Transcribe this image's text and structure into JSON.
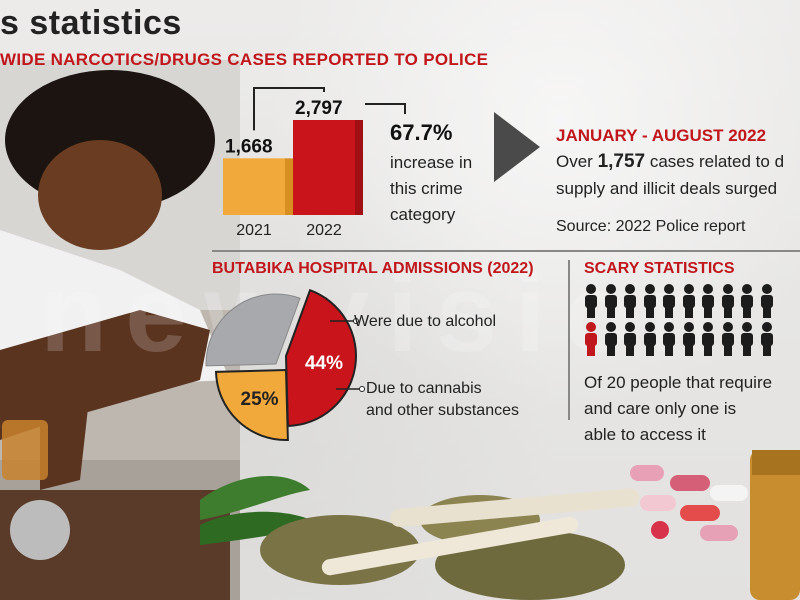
{
  "header": {
    "title": "s statistics",
    "subtitle": "WIDE NARCOTICS/DRUGS CASES REPORTED TO POLICE"
  },
  "colors": {
    "accent_red": "#c0171c",
    "bar_2021": "#f2a93b",
    "bar_2022": "#c8141a",
    "pie_grey": "#a7a9ac"
  },
  "increase": {
    "percent": "67.7%",
    "description": "increase in this crime category"
  },
  "period": {
    "heading": "JANUARY - AUGUST 2022",
    "line1_prefix": "Over ",
    "line1_number": "1,757",
    "line1_suffix": " cases related to d",
    "line2": "supply and illicit deals surged",
    "source": "Source: 2022 Police report"
  },
  "butabika": {
    "heading": "BUTABIKA HOSPITAL ADMISSIONS (2022)",
    "alcohol_label": "Were due to alcohol",
    "cannabis_label_1": "Due to cannabis",
    "cannabis_label_2": "and other substances"
  },
  "scary": {
    "heading": "SCARY STATISTICS",
    "desc_1": "Of 20 people that require",
    "desc_2": "and care only one is",
    "desc_3": "able to access it",
    "total_people": 20,
    "highlighted_people": 1
  },
  "watermark": "newvision",
  "chart_data": [
    {
      "type": "bar",
      "title": "WIDE NARCOTICS/DRUGS CASES REPORTED TO POLICE",
      "categories": [
        "2021",
        "2022"
      ],
      "values": [
        1668,
        2797
      ],
      "value_labels": [
        "1,668",
        "2,797"
      ],
      "ylim": [
        0,
        3000
      ],
      "grid": false
    },
    {
      "type": "pie",
      "title": "BUTABIKA HOSPITAL ADMISSIONS (2022)",
      "slices": [
        {
          "label": "Were due to alcohol",
          "value": 44,
          "value_label": "44%"
        },
        {
          "label": "Due to cannabis and other substances",
          "value": 25,
          "value_label": "25%"
        },
        {
          "label": "",
          "value": 31
        }
      ]
    }
  ]
}
